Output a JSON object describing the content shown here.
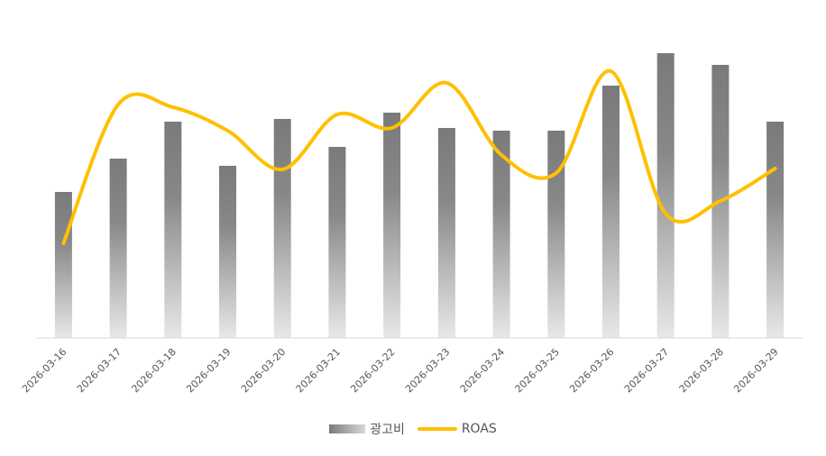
{
  "chart_data": {
    "type": "bar+line",
    "categories": [
      "2026-03-16",
      "2026-03-17",
      "2026-03-18",
      "2026-03-19",
      "2026-03-20",
      "2026-03-21",
      "2026-03-22",
      "2026-03-23",
      "2026-03-24",
      "2026-03-25",
      "2026-03-26",
      "2026-03-27",
      "2026-03-28",
      "2026-03-29"
    ],
    "series": [
      {
        "name": "광고비",
        "kind": "bar",
        "axis": "left",
        "values": [
          162,
          199,
          240,
          191,
          243,
          212,
          250,
          233,
          230,
          230,
          280,
          316,
          303,
          240
        ]
      },
      {
        "name": "ROAS",
        "kind": "line",
        "axis": "right",
        "smooth": true,
        "values": [
          105,
          259,
          256,
          230,
          187,
          248,
          233,
          283,
          203,
          183,
          296,
          138,
          152,
          188
        ]
      }
    ],
    "ylim_left": [
      0,
      350
    ],
    "ylim_right": [
      0,
      350
    ],
    "grid": false,
    "legend_position": "bottom",
    "colors": {
      "bar_top": "#7a7a7a",
      "bar_bottom": "#e8e8e8",
      "line": "#FFC000",
      "axis": "#d9d9d9",
      "text": "#555555"
    }
  },
  "legend": {
    "bar_label": "광고비",
    "line_label": "ROAS"
  }
}
